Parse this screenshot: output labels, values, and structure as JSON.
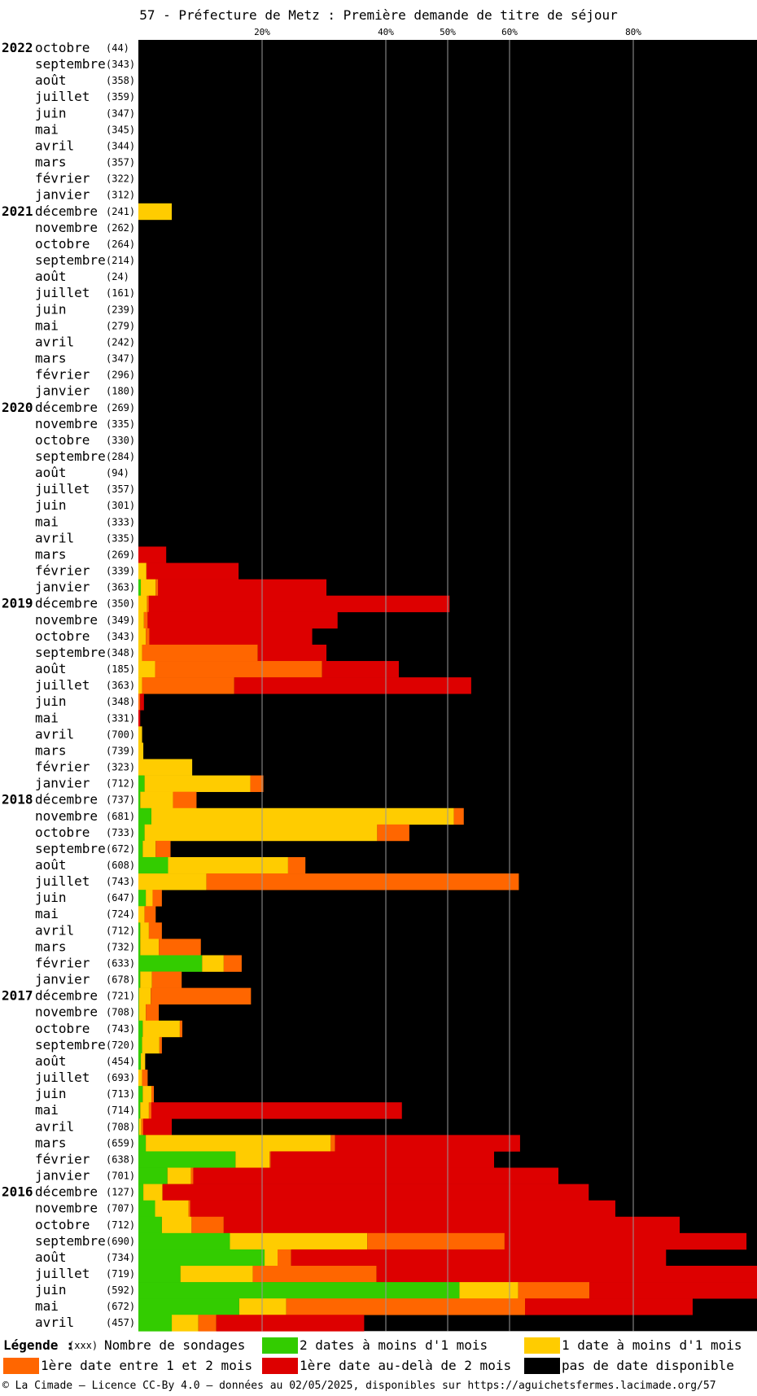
{
  "chart_data": {
    "type": "bar",
    "orientation": "horizontal",
    "stacked": true,
    "title": "57 - Préfecture de Metz : Première demande de titre de séjour",
    "x_tick_labels": [
      "20%",
      "40%",
      "50%",
      "60%",
      "80%"
    ],
    "x_ticks": [
      20,
      40,
      50,
      60,
      80
    ],
    "xlim": [
      0,
      100
    ],
    "grid": true,
    "series": [
      {
        "key": "g",
        "name": "2 dates à moins d'1 mois",
        "color": "#33cc00"
      },
      {
        "key": "y",
        "name": "1 date à moins d'1 mois",
        "color": "#ffcc00"
      },
      {
        "key": "o",
        "name": "1ère date entre 1 et 2 mois",
        "color": "#ff6600"
      },
      {
        "key": "r",
        "name": "1ère date au-delà de 2 mois",
        "color": "#dd0000"
      },
      {
        "key": "k",
        "name": "pas de date disponible",
        "color": "#000000"
      }
    ],
    "rows": [
      {
        "year": "2022",
        "month": "octobre",
        "count": "(44)",
        "g": 0,
        "y": 0,
        "o": 0,
        "r": 0
      },
      {
        "year": "",
        "month": "septembre",
        "count": "(343)",
        "g": 0,
        "y": 0,
        "o": 0,
        "r": 0
      },
      {
        "year": "",
        "month": "août",
        "count": "(358)",
        "g": 0,
        "y": 0,
        "o": 0,
        "r": 0
      },
      {
        "year": "",
        "month": "juillet",
        "count": "(359)",
        "g": 0,
        "y": 0,
        "o": 0,
        "r": 0
      },
      {
        "year": "",
        "month": "juin",
        "count": "(347)",
        "g": 0,
        "y": 0,
        "o": 0,
        "r": 0
      },
      {
        "year": "",
        "month": "mai",
        "count": "(345)",
        "g": 0,
        "y": 0,
        "o": 0,
        "r": 0
      },
      {
        "year": "",
        "month": "avril",
        "count": "(344)",
        "g": 0,
        "y": 0,
        "o": 0,
        "r": 0
      },
      {
        "year": "",
        "month": "mars",
        "count": "(357)",
        "g": 0,
        "y": 0,
        "o": 0,
        "r": 0
      },
      {
        "year": "",
        "month": "février",
        "count": "(322)",
        "g": 0,
        "y": 0,
        "o": 0,
        "r": 0
      },
      {
        "year": "",
        "month": "janvier",
        "count": "(312)",
        "g": 0,
        "y": 0,
        "o": 0,
        "r": 0
      },
      {
        "year": "2021",
        "month": "décembre",
        "count": "(241)",
        "g": 0,
        "y": 5.4,
        "o": 0,
        "r": 0
      },
      {
        "year": "",
        "month": "novembre",
        "count": "(262)",
        "g": 0,
        "y": 0,
        "o": 0,
        "r": 0
      },
      {
        "year": "",
        "month": "octobre",
        "count": "(264)",
        "g": 0,
        "y": 0,
        "o": 0,
        "r": 0
      },
      {
        "year": "",
        "month": "septembre",
        "count": "(214)",
        "g": 0,
        "y": 0,
        "o": 0,
        "r": 0
      },
      {
        "year": "",
        "month": "août",
        "count": "(24)",
        "g": 0,
        "y": 0,
        "o": 0,
        "r": 0
      },
      {
        "year": "",
        "month": "juillet",
        "count": "(161)",
        "g": 0,
        "y": 0,
        "o": 0,
        "r": 0
      },
      {
        "year": "",
        "month": "juin",
        "count": "(239)",
        "g": 0,
        "y": 0,
        "o": 0,
        "r": 0
      },
      {
        "year": "",
        "month": "mai",
        "count": "(279)",
        "g": 0,
        "y": 0,
        "o": 0,
        "r": 0
      },
      {
        "year": "",
        "month": "avril",
        "count": "(242)",
        "g": 0,
        "y": 0,
        "o": 0,
        "r": 0
      },
      {
        "year": "",
        "month": "mars",
        "count": "(347)",
        "g": 0,
        "y": 0,
        "o": 0,
        "r": 0
      },
      {
        "year": "",
        "month": "février",
        "count": "(296)",
        "g": 0,
        "y": 0,
        "o": 0,
        "r": 0
      },
      {
        "year": "",
        "month": "janvier",
        "count": "(180)",
        "g": 0,
        "y": 0,
        "o": 0,
        "r": 0
      },
      {
        "year": "2020",
        "month": "décembre",
        "count": "(269)",
        "g": 0,
        "y": 0,
        "o": 0,
        "r": 0
      },
      {
        "year": "",
        "month": "novembre",
        "count": "(335)",
        "g": 0,
        "y": 0,
        "o": 0,
        "r": 0
      },
      {
        "year": "",
        "month": "octobre",
        "count": "(330)",
        "g": 0,
        "y": 0,
        "o": 0,
        "r": 0
      },
      {
        "year": "",
        "month": "septembre",
        "count": "(284)",
        "g": 0,
        "y": 0,
        "o": 0,
        "r": 0
      },
      {
        "year": "",
        "month": "août",
        "count": "(94)",
        "g": 0,
        "y": 0,
        "o": 0,
        "r": 0
      },
      {
        "year": "",
        "month": "juillet",
        "count": "(357)",
        "g": 0,
        "y": 0,
        "o": 0,
        "r": 0
      },
      {
        "year": "",
        "month": "juin",
        "count": "(301)",
        "g": 0,
        "y": 0,
        "o": 0,
        "r": 0
      },
      {
        "year": "",
        "month": "mai",
        "count": "(333)",
        "g": 0,
        "y": 0,
        "o": 0,
        "r": 0
      },
      {
        "year": "",
        "month": "avril",
        "count": "(335)",
        "g": 0,
        "y": 0,
        "o": 0,
        "r": 0
      },
      {
        "year": "",
        "month": "mars",
        "count": "(269)",
        "g": 0,
        "y": 0,
        "o": 0,
        "r": 4.5
      },
      {
        "year": "",
        "month": "février",
        "count": "(339)",
        "g": 0,
        "y": 1.3,
        "o": 0,
        "r": 14.9
      },
      {
        "year": "",
        "month": "janvier",
        "count": "(363)",
        "g": 0.4,
        "y": 2.4,
        "o": 0.4,
        "r": 27.2
      },
      {
        "year": "2019",
        "month": "décembre",
        "count": "(350)",
        "g": 0,
        "y": 1.4,
        "o": 0.3,
        "r": 48.6
      },
      {
        "year": "",
        "month": "novembre",
        "count": "(349)",
        "g": 0,
        "y": 0.9,
        "o": 0.6,
        "r": 30.7
      },
      {
        "year": "",
        "month": "octobre",
        "count": "(343)",
        "g": 0,
        "y": 1.2,
        "o": 0.6,
        "r": 26.3
      },
      {
        "year": "",
        "month": "septembre",
        "count": "(348)",
        "g": 0,
        "y": 0.6,
        "o": 18.7,
        "r": 11.1
      },
      {
        "year": "",
        "month": "août",
        "count": "(185)",
        "g": 0,
        "y": 2.7,
        "o": 27.0,
        "r": 12.4
      },
      {
        "year": "",
        "month": "juillet",
        "count": "(363)",
        "g": 0,
        "y": 0.6,
        "o": 14.9,
        "r": 38.3
      },
      {
        "year": "",
        "month": "juin",
        "count": "(348)",
        "g": 0,
        "y": 0,
        "o": 0.3,
        "r": 0.6
      },
      {
        "year": "",
        "month": "mai",
        "count": "(331)",
        "g": 0,
        "y": 0,
        "o": 0,
        "r": 0.3
      },
      {
        "year": "",
        "month": "avril",
        "count": "(700)",
        "g": 0,
        "y": 0.6,
        "o": 0,
        "r": 0
      },
      {
        "year": "",
        "month": "mars",
        "count": "(739)",
        "g": 0,
        "y": 0.8,
        "o": 0,
        "r": 0
      },
      {
        "year": "",
        "month": "février",
        "count": "(323)",
        "g": 0,
        "y": 8.7,
        "o": 0,
        "r": 0
      },
      {
        "year": "",
        "month": "janvier",
        "count": "(712)",
        "g": 1.0,
        "y": 17.1,
        "o": 2.1,
        "r": 0
      },
      {
        "year": "2018",
        "month": "décembre",
        "count": "(737)",
        "g": 0.3,
        "y": 5.3,
        "o": 3.8,
        "r": 0
      },
      {
        "year": "",
        "month": "novembre",
        "count": "(681)",
        "g": 2.1,
        "y": 48.9,
        "o": 1.6,
        "r": 0
      },
      {
        "year": "",
        "month": "octobre",
        "count": "(733)",
        "g": 1.0,
        "y": 37.6,
        "o": 5.2,
        "r": 0
      },
      {
        "year": "",
        "month": "septembre",
        "count": "(672)",
        "g": 0.7,
        "y": 2.1,
        "o": 2.4,
        "r": 0
      },
      {
        "year": "",
        "month": "août",
        "count": "(608)",
        "g": 4.8,
        "y": 19.4,
        "o": 2.8,
        "r": 0
      },
      {
        "year": "",
        "month": "juillet",
        "count": "(743)",
        "g": 0,
        "y": 11.0,
        "o": 50.5,
        "r": 0
      },
      {
        "year": "",
        "month": "juin",
        "count": "(647)",
        "g": 1.2,
        "y": 1.1,
        "o": 1.5,
        "r": 0
      },
      {
        "year": "",
        "month": "mai",
        "count": "(724)",
        "g": 0,
        "y": 1.0,
        "o": 1.8,
        "r": 0
      },
      {
        "year": "",
        "month": "avril",
        "count": "(712)",
        "g": 0.3,
        "y": 1.4,
        "o": 2.1,
        "r": 0
      },
      {
        "year": "",
        "month": "mars",
        "count": "(732)",
        "g": 0.3,
        "y": 3.0,
        "o": 6.8,
        "r": 0
      },
      {
        "year": "",
        "month": "février",
        "count": "(633)",
        "g": 10.3,
        "y": 3.5,
        "o": 2.9,
        "r": 0
      },
      {
        "year": "",
        "month": "janvier",
        "count": "(678)",
        "g": 0.3,
        "y": 1.9,
        "o": 4.8,
        "r": 0
      },
      {
        "year": "2017",
        "month": "décembre",
        "count": "(721)",
        "g": 0.1,
        "y": 1.9,
        "o": 16.2,
        "r": 0
      },
      {
        "year": "",
        "month": "novembre",
        "count": "(708)",
        "g": 0.1,
        "y": 1.1,
        "o": 2.1,
        "r": 0
      },
      {
        "year": "",
        "month": "octobre",
        "count": "(743)",
        "g": 0.7,
        "y": 6.0,
        "o": 0.4,
        "r": 0
      },
      {
        "year": "",
        "month": "septembre",
        "count": "(720)",
        "g": 0.6,
        "y": 2.8,
        "o": 0.4,
        "r": 0
      },
      {
        "year": "",
        "month": "août",
        "count": "(454)",
        "g": 0.4,
        "y": 0.7,
        "o": 0,
        "r": 0
      },
      {
        "year": "",
        "month": "juillet",
        "count": "(693)",
        "g": 0,
        "y": 0.6,
        "o": 0.9,
        "r": 0
      },
      {
        "year": "",
        "month": "juin",
        "count": "(713)",
        "g": 0.7,
        "y": 1.4,
        "o": 0.4,
        "r": 0
      },
      {
        "year": "",
        "month": "mai",
        "count": "(714)",
        "g": 0.3,
        "y": 1.4,
        "o": 0.4,
        "r": 40.5
      },
      {
        "year": "",
        "month": "avril",
        "count": "(708)",
        "g": 0.1,
        "y": 0.4,
        "o": 0.3,
        "r": 4.6
      },
      {
        "year": "",
        "month": "mars",
        "count": "(659)",
        "g": 1.2,
        "y": 29.9,
        "o": 0.7,
        "r": 29.9
      },
      {
        "year": "",
        "month": "février",
        "count": "(638)",
        "g": 15.7,
        "y": 5.5,
        "o": 0.2,
        "r": 36.1
      },
      {
        "year": "",
        "month": "janvier",
        "count": "(701)",
        "g": 4.7,
        "y": 3.8,
        "o": 0.4,
        "r": 59.0
      },
      {
        "year": "2016",
        "month": "décembre",
        "count": "(127)",
        "g": 0.8,
        "y": 3.1,
        "o": 0,
        "r": 68.9
      },
      {
        "year": "",
        "month": "novembre",
        "count": "(707)",
        "g": 2.7,
        "y": 5.4,
        "o": 0.3,
        "r": 68.7
      },
      {
        "year": "",
        "month": "octobre",
        "count": "(712)",
        "g": 3.8,
        "y": 4.8,
        "o": 5.2,
        "r": 73.7
      },
      {
        "year": "",
        "month": "septembre",
        "count": "(690)",
        "g": 14.8,
        "y": 22.2,
        "o": 22.2,
        "r": 39.1
      },
      {
        "year": "",
        "month": "août",
        "count": "(734)",
        "g": 20.4,
        "y": 2.1,
        "o": 2.2,
        "r": 60.6
      },
      {
        "year": "",
        "month": "juillet",
        "count": "(719)",
        "g": 6.8,
        "y": 11.7,
        "o": 20.0,
        "r": 61.5
      },
      {
        "year": "",
        "month": "juin",
        "count": "(592)",
        "g": 51.9,
        "y": 9.5,
        "o": 11.5,
        "r": 27.1
      },
      {
        "year": "",
        "month": "mai",
        "count": "(672)",
        "g": 16.3,
        "y": 7.6,
        "o": 38.6,
        "r": 27.1
      },
      {
        "year": "",
        "month": "avril",
        "count": "(457)",
        "g": 5.4,
        "y": 4.3,
        "o": 2.9,
        "r": 23.9
      }
    ]
  },
  "legend": {
    "title": "Légende :",
    "count_note": "(xxx)",
    "count_label": "Nombre de sondages",
    "items": [
      {
        "label": "2 dates à moins d'1 mois",
        "color": "#33cc00"
      },
      {
        "label": "1 date à moins d'1 mois",
        "color": "#ffcc00"
      },
      {
        "label": "1ère date entre 1 et 2 mois",
        "color": "#ff6600"
      },
      {
        "label": "1ère date au-delà de 2 mois",
        "color": "#dd0000"
      },
      {
        "label": "pas de date disponible",
        "color": "#000000"
      }
    ]
  },
  "footer": {
    "credit": "© La Cimade — Licence CC-By 4.0 — données au 02/05/2025, disponibles sur https://aguichetsfermes.lacimade.org/57"
  }
}
